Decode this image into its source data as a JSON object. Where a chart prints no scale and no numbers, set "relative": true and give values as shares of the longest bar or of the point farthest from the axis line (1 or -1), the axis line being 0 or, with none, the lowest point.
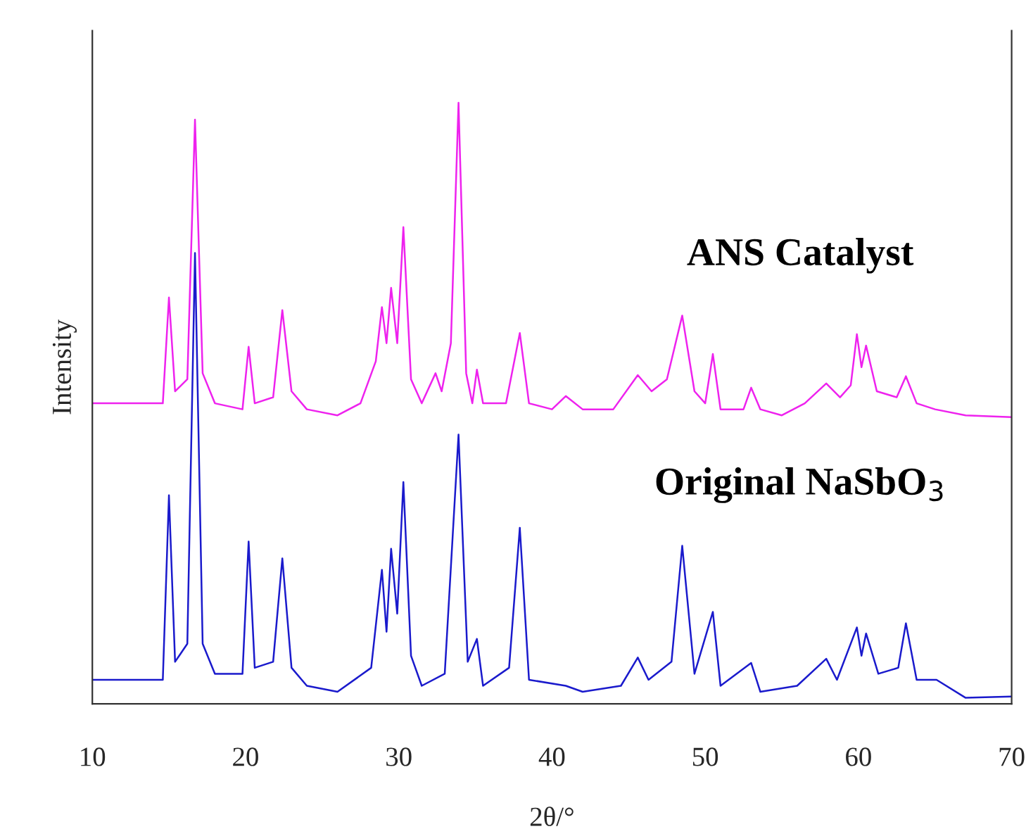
{
  "chart_data": {
    "type": "line",
    "relative": true,
    "xlabel": "2θ/°",
    "ylabel": "Intensity",
    "xlim": [
      10,
      70
    ],
    "xticks": [
      10,
      20,
      30,
      40,
      50,
      60,
      70
    ],
    "tick_labels": "x",
    "grid": false,
    "legend": false,
    "line_style": "solid",
    "marker": "none",
    "series": [
      {
        "name": "ANS Catalyst",
        "color": "#ee22ee",
        "x": [
          10,
          14.6,
          15.0,
          15.4,
          16.2,
          16.7,
          17.2,
          18,
          19.8,
          20.2,
          20.6,
          21.8,
          22.4,
          23.0,
          24,
          26,
          27.5,
          28.5,
          28.9,
          29.2,
          29.5,
          29.9,
          30.3,
          30.8,
          31.5,
          32.4,
          32.8,
          33.4,
          33.9,
          34.4,
          34.8,
          35.1,
          35.5,
          37,
          37.9,
          38.5,
          40,
          40.9,
          42,
          44,
          45.6,
          46.5,
          47.5,
          48.5,
          49.3,
          50,
          50.5,
          51,
          52.5,
          53,
          53.6,
          55,
          56.5,
          57.9,
          58.8,
          59.5,
          59.9,
          60.2,
          60.5,
          61.2,
          62.5,
          63.1,
          63.8,
          65,
          67,
          70
        ],
        "values": [
          0.5,
          0.5,
          0.676,
          0.52,
          0.54,
          0.972,
          0.55,
          0.5,
          0.49,
          0.594,
          0.5,
          0.51,
          0.655,
          0.52,
          0.49,
          0.48,
          0.5,
          0.57,
          0.66,
          0.6,
          0.692,
          0.6,
          0.793,
          0.54,
          0.5,
          0.55,
          0.52,
          0.6,
          1.0,
          0.55,
          0.5,
          0.556,
          0.5,
          0.5,
          0.617,
          0.5,
          0.49,
          0.512,
          0.49,
          0.49,
          0.547,
          0.52,
          0.54,
          0.646,
          0.52,
          0.5,
          0.582,
          0.49,
          0.49,
          0.526,
          0.49,
          0.48,
          0.5,
          0.533,
          0.51,
          0.53,
          0.615,
          0.56,
          0.596,
          0.52,
          0.51,
          0.545,
          0.5,
          0.49,
          0.48,
          0.477
        ]
      },
      {
        "name": "Original NaSbO$_{3}$",
        "color": "#1a1acc",
        "x": [
          10,
          14.6,
          15.0,
          15.4,
          16.2,
          16.7,
          17.2,
          18,
          19.8,
          20.2,
          20.6,
          21.8,
          22.4,
          23,
          24,
          26,
          28.2,
          28.9,
          29.2,
          29.5,
          29.9,
          30.3,
          30.8,
          31.5,
          33,
          33.9,
          34.5,
          35.1,
          35.5,
          37.2,
          37.9,
          38.5,
          40.9,
          42,
          44.5,
          45.6,
          46.3,
          47.8,
          48.5,
          49.3,
          50.5,
          51,
          53,
          53.6,
          56,
          57.9,
          58.6,
          59.9,
          60.2,
          60.5,
          61.3,
          62.6,
          63.1,
          63.8,
          65.1,
          67,
          70
        ],
        "values": [
          0.04,
          0.04,
          0.347,
          0.07,
          0.1,
          0.75,
          0.1,
          0.05,
          0.05,
          0.27,
          0.06,
          0.07,
          0.242,
          0.06,
          0.03,
          0.02,
          0.06,
          0.223,
          0.12,
          0.258,
          0.15,
          0.369,
          0.08,
          0.03,
          0.05,
          0.448,
          0.07,
          0.108,
          0.03,
          0.06,
          0.293,
          0.04,
          0.03,
          0.02,
          0.03,
          0.077,
          0.04,
          0.07,
          0.263,
          0.05,
          0.153,
          0.03,
          0.068,
          0.02,
          0.03,
          0.075,
          0.04,
          0.127,
          0.08,
          0.117,
          0.05,
          0.06,
          0.134,
          0.04,
          0.04,
          0.01,
          0.012
        ]
      }
    ]
  }
}
